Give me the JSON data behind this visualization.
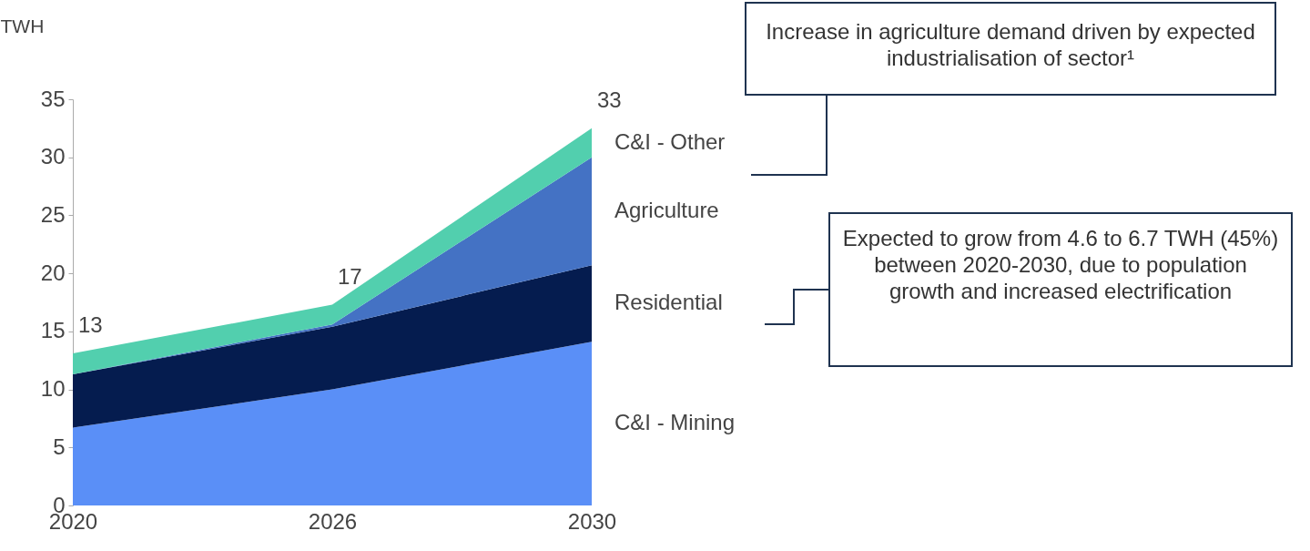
{
  "chart_data": {
    "type": "area",
    "stacked": true,
    "ylabel": "TWH",
    "categories": [
      "2020",
      "2026",
      "2030"
    ],
    "ylim": [
      0,
      35
    ],
    "yticks": [
      0,
      5,
      10,
      15,
      20,
      25,
      30,
      35
    ],
    "grid": false,
    "legend": "right",
    "series": [
      {
        "name": "C&I - Mining",
        "color": "#5a8ff7",
        "values": [
          6.7,
          10.0,
          14.1
        ]
      },
      {
        "name": "Residential",
        "color": "#051c4f",
        "values": [
          4.6,
          5.4,
          6.6
        ]
      },
      {
        "name": "Agriculture",
        "color": "#4472c4",
        "values": [
          0,
          0.2,
          9.3
        ]
      },
      {
        "name": "C&I - Other",
        "color": "#52cfae",
        "values": [
          1.8,
          1.7,
          2.5
        ]
      }
    ],
    "totals": [
      "13",
      "17",
      "33"
    ],
    "annotations": [
      "Increase in agriculture demand driven by expected industrialisation of sector¹",
      "Expected to grow from 4.6 to 6.7 TWH (45%) between 2020-2030, due to population growth and increased electrification"
    ]
  }
}
